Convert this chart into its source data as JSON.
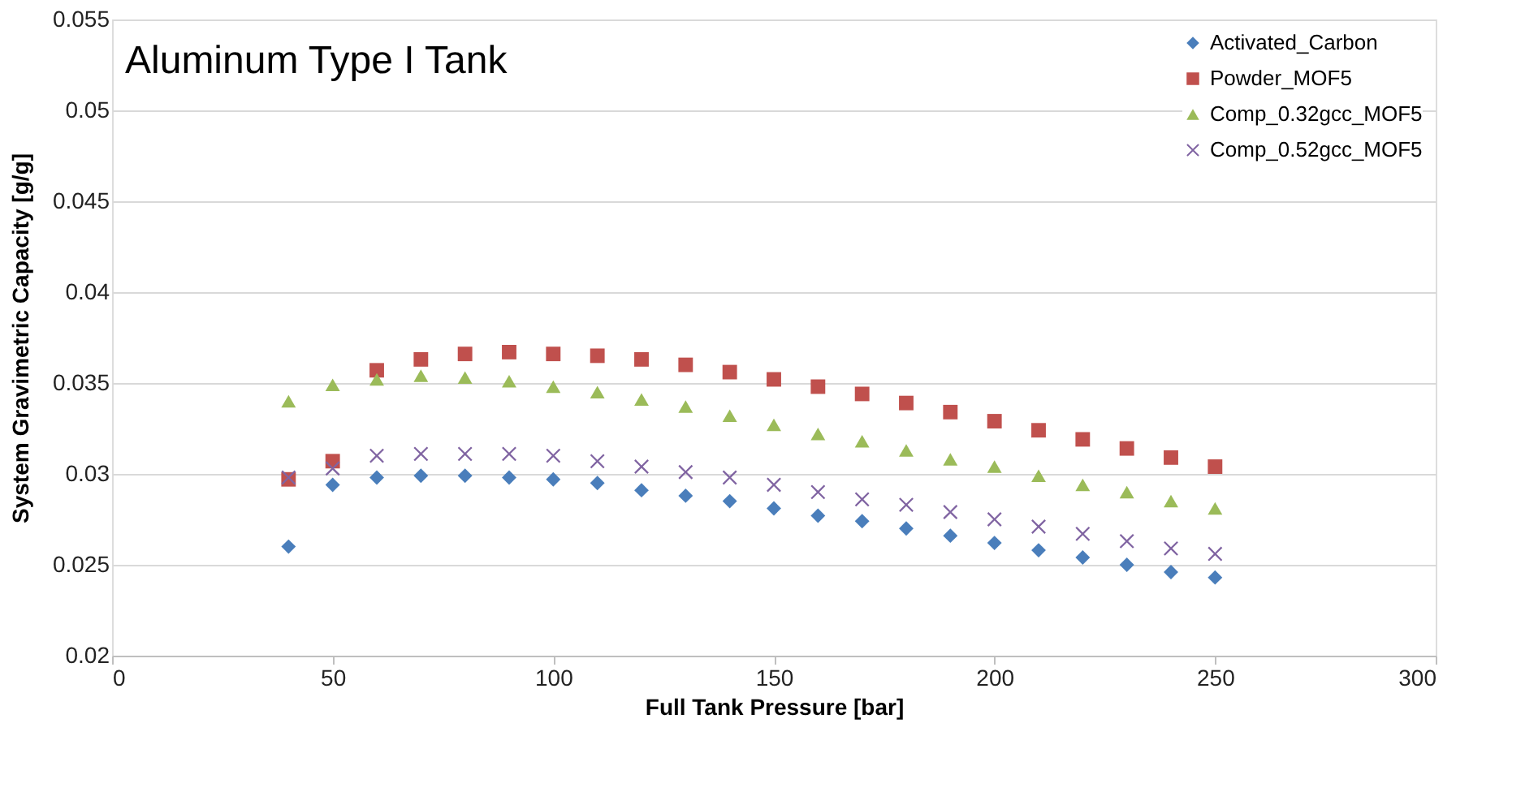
{
  "chart_data": {
    "type": "scatter",
    "title": "Aluminum Type I Tank",
    "xlabel": "Full Tank Pressure [bar]",
    "ylabel": "System Gravimetric Capacity [g/g]",
    "x": [
      40,
      50,
      60,
      70,
      80,
      90,
      100,
      110,
      120,
      130,
      140,
      150,
      160,
      170,
      180,
      190,
      200,
      210,
      220,
      230,
      240,
      250
    ],
    "series": [
      {
        "name": "Activated_Carbon",
        "color": "#4a7ebb",
        "marker": "diamond",
        "values": [
          0.026,
          0.0294,
          0.0298,
          0.0299,
          0.0299,
          0.0298,
          0.0297,
          0.0295,
          0.0291,
          0.0288,
          0.0285,
          0.0281,
          0.0277,
          0.0274,
          0.027,
          0.0266,
          0.0262,
          0.0258,
          0.0254,
          0.025,
          0.0246,
          0.0243
        ]
      },
      {
        "name": "Powder_MOF5",
        "color": "#c0504d",
        "marker": "square",
        "values": [
          0.0297,
          0.0307,
          0.0357,
          0.0363,
          0.0366,
          0.0367,
          0.0366,
          0.0365,
          0.0363,
          0.036,
          0.0356,
          0.0352,
          0.0348,
          0.0344,
          0.0339,
          0.0334,
          0.0329,
          0.0324,
          0.0319,
          0.0314,
          0.0309,
          0.0304
        ]
      },
      {
        "name": "Comp_0.32gcc_MOF5",
        "color": "#9bbb59",
        "marker": "triangle",
        "values": [
          0.034,
          0.0349,
          0.0352,
          0.0354,
          0.0353,
          0.0351,
          0.0348,
          0.0345,
          0.0341,
          0.0337,
          0.0332,
          0.0327,
          0.0322,
          0.0318,
          0.0313,
          0.0308,
          0.0304,
          0.0299,
          0.0294,
          0.029,
          0.0285,
          0.0281
        ]
      },
      {
        "name": "Comp_0.52gcc_MOF5",
        "color": "#8064a2",
        "marker": "cross",
        "values": [
          0.0298,
          0.0303,
          0.031,
          0.0311,
          0.0311,
          0.0311,
          0.031,
          0.0307,
          0.0304,
          0.0301,
          0.0298,
          0.0294,
          0.029,
          0.0286,
          0.0283,
          0.0279,
          0.0275,
          0.0271,
          0.0267,
          0.0263,
          0.0259,
          0.0256
        ]
      }
    ],
    "xlim": [
      0,
      300
    ],
    "xticks": [
      0,
      50,
      100,
      150,
      200,
      250,
      300
    ],
    "ylim": [
      0.02,
      0.055
    ],
    "yticks": [
      0.02,
      0.025,
      0.03,
      0.035,
      0.04,
      0.045,
      0.05,
      0.055
    ],
    "grid": "y",
    "legend": "top right"
  }
}
